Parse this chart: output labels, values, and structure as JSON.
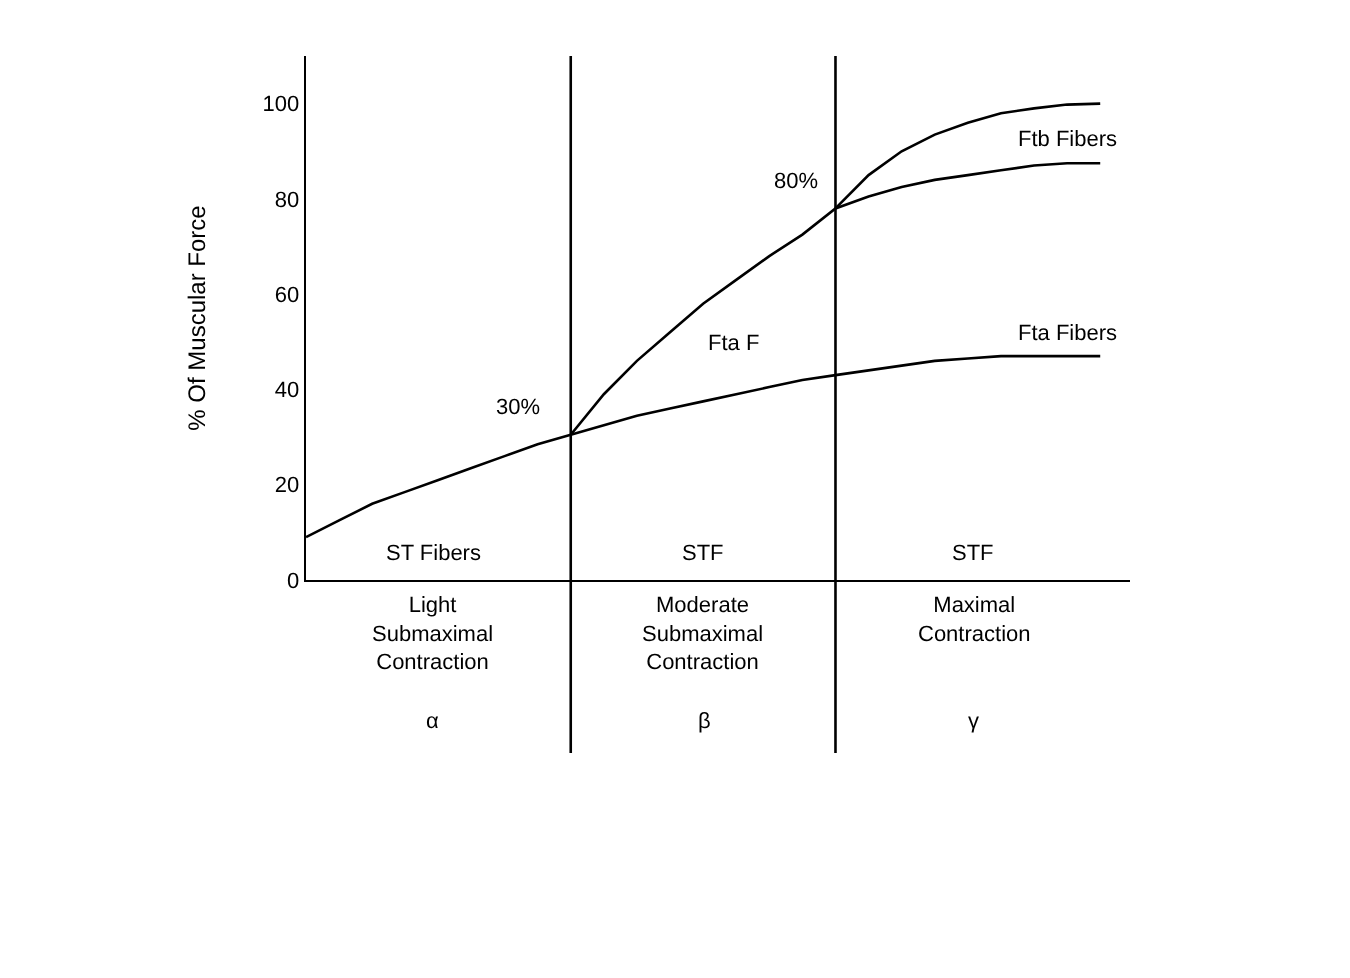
{
  "chart_data": {
    "type": "line",
    "ylabel": "% Of Muscular Force",
    "categories": [
      null,
      null,
      null,
      null,
      null,
      null,
      null,
      null,
      null,
      null,
      null,
      null,
      null,
      null,
      null,
      null,
      null,
      null,
      null,
      null,
      null,
      null,
      null,
      null,
      null
    ],
    "ylim": [
      0,
      110
    ],
    "yticks": [
      0,
      20,
      40,
      60,
      80,
      100
    ],
    "tick_labels": "y",
    "marker": "none",
    "line_style": "solid",
    "series": [
      {
        "color": "#000000",
        "values": [
          9,
          12.5,
          16,
          18.5,
          21,
          23.5,
          26,
          28.5,
          30.5,
          32.5,
          34.5,
          36,
          37.5,
          39,
          40.5,
          42,
          43,
          44,
          45,
          46,
          46.5,
          47,
          47,
          47,
          47
        ]
      },
      {
        "color": "#000000",
        "values": [
          null,
          null,
          null,
          null,
          null,
          null,
          null,
          null,
          30.5,
          39,
          46,
          52,
          58,
          63,
          68,
          72.5,
          78,
          80.5,
          82.5,
          84,
          85,
          86,
          87,
          87.5,
          87.5
        ]
      },
      {
        "color": "#000000",
        "values": [
          null,
          null,
          null,
          null,
          null,
          null,
          null,
          null,
          null,
          null,
          null,
          null,
          null,
          null,
          null,
          null,
          78,
          85,
          90,
          93.5,
          96,
          98,
          99,
          99.8,
          100
        ]
      }
    ],
    "annotations": [
      "30%",
      "80%",
      "Fta F",
      "Ftb Fibers",
      "Fta Fibers",
      "ST Fibers",
      "STF",
      "STF",
      "Light\nSubmaximal\nContraction",
      "Moderate\nSubmaximal\nContraction",
      "Maximal\nContraction",
      "α",
      "β",
      "γ"
    ]
  }
}
